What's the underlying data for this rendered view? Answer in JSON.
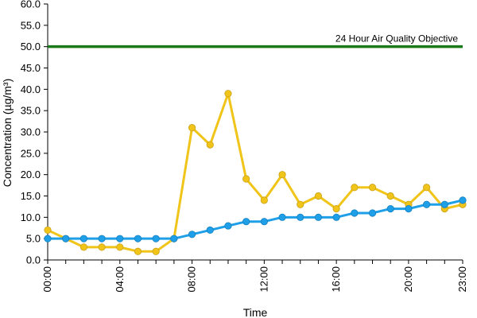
{
  "chart_data": {
    "type": "line",
    "xlabel": "Time",
    "ylabel": "Concentration (µg/m³)",
    "ylim": [
      0,
      60
    ],
    "yticks": [
      "0.0",
      "5.0",
      "10.0",
      "15.0",
      "20.0",
      "25.0",
      "30.0",
      "35.0",
      "40.0",
      "45.0",
      "50.0",
      "55.0",
      "60.0"
    ],
    "xticks": [
      "00:00",
      "04:00",
      "08:00",
      "12:00",
      "16:00",
      "20:00",
      "23:00"
    ],
    "xtick_hours": [
      0,
      4,
      8,
      12,
      16,
      20,
      23
    ],
    "x": [
      0,
      1,
      2,
      3,
      4,
      5,
      6,
      7,
      8,
      9,
      10,
      11,
      12,
      13,
      14,
      15,
      16,
      17,
      18,
      19,
      20,
      21,
      22,
      23
    ],
    "series": [
      {
        "color": "#f0c419",
        "values": [
          7,
          5,
          3,
          3,
          3,
          2,
          2,
          5,
          31,
          27,
          39,
          19,
          14,
          20,
          13,
          15,
          12,
          17,
          17,
          15,
          13,
          17,
          12,
          13
        ]
      },
      {
        "color": "#1e9fe8",
        "values": [
          5,
          5,
          5,
          5,
          5,
          5,
          5,
          5,
          6,
          7,
          8,
          9,
          9,
          10,
          10,
          10,
          10,
          11,
          11,
          12,
          12,
          13,
          13,
          14
        ]
      }
    ],
    "reference_line": {
      "label": "24 Hour Air Quality Objective",
      "value": 50,
      "color": "#1a7a1a"
    },
    "grid": false,
    "legend": "none"
  }
}
